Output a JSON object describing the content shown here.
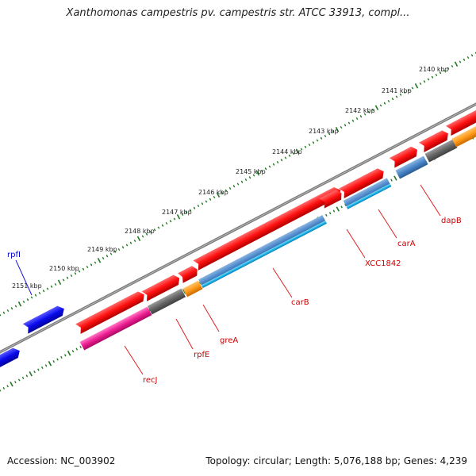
{
  "title": "Xanthomonas campestris pv. campestris str. ATCC 33913, compl...",
  "accession": "Accession: NC_003902",
  "topology": "Topology: circular; Length: 5,076,188 bp; Genes: 4,239",
  "ruler": {
    "labels": [
      "2140 kbp",
      "2141 kbp",
      "2142 kbp",
      "2143 kbp",
      "2144 kbp",
      "2145 kbp",
      "2146 kbp",
      "2147 kbp",
      "2148 kbp",
      "2149 kbp",
      "2150 kbp",
      "2151 kbp"
    ],
    "tick_color": "#1f7a1f"
  },
  "genes": [
    {
      "label": "dapB",
      "color": "#cc0000"
    },
    {
      "label": "carA",
      "color": "#cc0000"
    },
    {
      "label": "XCC1842",
      "color": "#cc0000"
    },
    {
      "label": "carB",
      "color": "#cc0000"
    },
    {
      "label": "greA",
      "color": "#cc0000"
    },
    {
      "label": "rpfE",
      "color": "#cc0000"
    },
    {
      "label": "recJ",
      "color": "#cc0000"
    },
    {
      "label": "rpfI",
      "color": "#0000cc"
    }
  ],
  "colors": {
    "gene_red": "#ff1a1a",
    "gene_blue": "#1010ee",
    "backbone": "#8c8c8c",
    "cds_steel": "#4a86c8",
    "cds_cyan": "#1ab6ea",
    "cds_gray": "#6a6a6a",
    "cds_orange": "#ff9a1a",
    "cds_pink": "#ee1e92"
  }
}
